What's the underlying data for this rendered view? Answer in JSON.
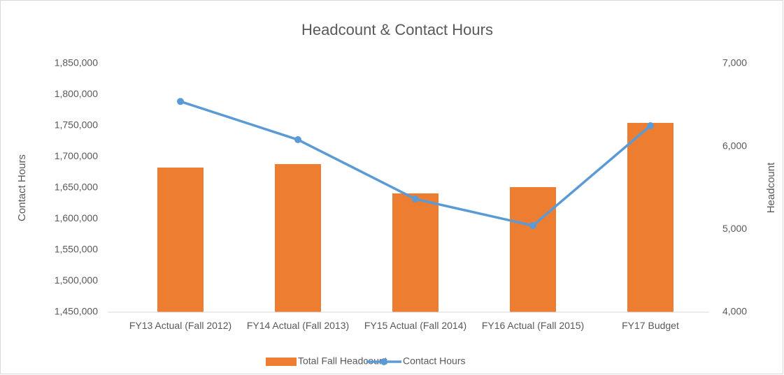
{
  "chart_data": {
    "type": "bar",
    "title": "Headcount & Contact Hours",
    "categories": [
      "FY13 Actual (Fall 2012)",
      "FY14 Actual (Fall 2013)",
      "FY15 Actual (Fall 2014)",
      "FY16 Actual (Fall 2015)",
      "FY17 Budget"
    ],
    "series": [
      {
        "name": "Total Fall Headcount",
        "type": "bar",
        "color": "#ed7d31",
        "axis": "y2",
        "values": [
          5745,
          5787,
          5433,
          5509,
          6284
        ]
      },
      {
        "name": "Contact Hours",
        "type": "line",
        "color": "#5b9bd5",
        "values": [
          1789000,
          1727500,
          1632000,
          1589300,
          1750000
        ]
      }
    ],
    "ylabel": "Contact Hours",
    "y2label": "Headcount",
    "ylim": [
      1450000,
      1850000
    ],
    "yticks": [
      {
        "value": 1450000,
        "label": "1,450,000"
      },
      {
        "value": 1500000,
        "label": "1,500,000"
      },
      {
        "value": 1550000,
        "label": "1,550,000"
      },
      {
        "value": 1600000,
        "label": "1,600,000"
      },
      {
        "value": 1650000,
        "label": "1,650,000"
      },
      {
        "value": 1700000,
        "label": "1,700,000"
      },
      {
        "value": 1750000,
        "label": "1,750,000"
      },
      {
        "value": 1800000,
        "label": "1,800,000"
      },
      {
        "value": 1850000,
        "label": "1,850,000"
      }
    ],
    "y2lim": [
      4000,
      7000
    ],
    "y2ticks": [
      {
        "value": 4000,
        "label": "4,000"
      },
      {
        "value": 5000,
        "label": "5,000"
      },
      {
        "value": 6000,
        "label": "6,000"
      },
      {
        "value": 7000,
        "label": "7,000"
      }
    ],
    "legend": "bottom",
    "grid": false
  }
}
